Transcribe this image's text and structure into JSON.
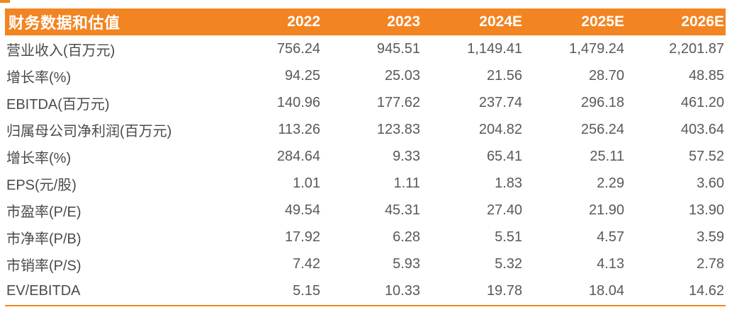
{
  "colors": {
    "accent": "#F28422",
    "header_text": "#FFFFFF",
    "label_text": "#4A4A4B",
    "number_text": "#58595B"
  },
  "chart_data": {
    "type": "table",
    "title": "财务数据和估值",
    "columns": [
      "2022",
      "2023",
      "2024E",
      "2025E",
      "2026E"
    ],
    "rows": [
      {
        "label": "营业收入(百万元)",
        "values": [
          "756.24",
          "945.51",
          "1,149.41",
          "1,479.24",
          "2,201.87"
        ]
      },
      {
        "label": "增长率(%)",
        "values": [
          "94.25",
          "25.03",
          "21.56",
          "28.70",
          "48.85"
        ]
      },
      {
        "label": "EBITDA(百万元)",
        "values": [
          "140.96",
          "177.62",
          "237.74",
          "296.18",
          "461.20"
        ]
      },
      {
        "label": "归属母公司净利润(百万元)",
        "values": [
          "113.26",
          "123.83",
          "204.82",
          "256.24",
          "403.64"
        ]
      },
      {
        "label": "增长率(%)",
        "values": [
          "284.64",
          "9.33",
          "65.41",
          "25.11",
          "57.52"
        ]
      },
      {
        "label": "EPS(元/股)",
        "values": [
          "1.01",
          "1.11",
          "1.83",
          "2.29",
          "3.60"
        ]
      },
      {
        "label": "市盈率(P/E)",
        "values": [
          "49.54",
          "45.31",
          "27.40",
          "21.90",
          "13.90"
        ]
      },
      {
        "label": "市净率(P/B)",
        "values": [
          "17.92",
          "6.28",
          "5.51",
          "4.57",
          "3.59"
        ]
      },
      {
        "label": "市销率(P/S)",
        "values": [
          "7.42",
          "5.93",
          "5.32",
          "4.13",
          "2.78"
        ]
      },
      {
        "label": "EV/EBITDA",
        "values": [
          "5.15",
          "10.33",
          "19.78",
          "18.04",
          "14.62"
        ]
      }
    ]
  }
}
